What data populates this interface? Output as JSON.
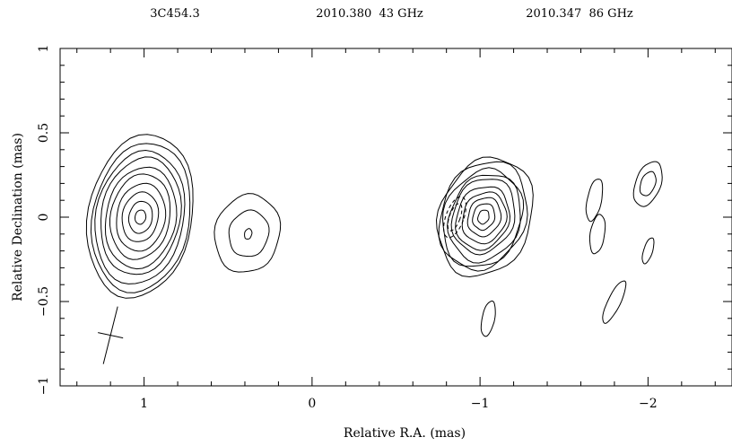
{
  "header": {
    "source": "3C454.3",
    "epoch_left": "2010.380  43 GHz",
    "epoch_right": "2010.347  86 GHz"
  },
  "chart_data": {
    "type": "contour",
    "title": "",
    "xlabel": "Relative R.A. (mas)",
    "ylabel": "Relative Declination (mas)",
    "xlim": [
      1.5,
      -2.5
    ],
    "ylim": [
      -1,
      1
    ],
    "x_reversed": true,
    "x_ticks": [
      {
        "value": 1,
        "label": "1"
      },
      {
        "value": 0,
        "label": "0"
      },
      {
        "value": -1,
        "label": "−1"
      },
      {
        "value": -2,
        "label": "−2"
      }
    ],
    "y_ticks": [
      {
        "value": -1,
        "label": "−1"
      },
      {
        "value": -0.5,
        "label": "−0.5"
      },
      {
        "value": 0,
        "label": "0"
      },
      {
        "value": 0.5,
        "label": "0.5"
      },
      {
        "value": 1,
        "label": "1"
      }
    ],
    "beam": {
      "x": 1.2,
      "y": -0.7
    },
    "components": [
      {
        "name": "43GHz core",
        "x": 1.0,
        "y": 0.0,
        "levels": 10
      },
      {
        "name": "43GHz knot",
        "x": 0.38,
        "y": -0.1,
        "levels": 3
      },
      {
        "name": "86GHz core",
        "x": -1.0,
        "y": 0.0,
        "levels": 10
      },
      {
        "name": "86GHz knot A",
        "x": -1.68,
        "y": 0.1,
        "levels": 1
      },
      {
        "name": "86GHz knot B",
        "x": -1.7,
        "y": -0.1,
        "levels": 1
      },
      {
        "name": "86GHz knot C",
        "x": -2.0,
        "y": 0.2,
        "levels": 2
      },
      {
        "name": "86GHz knot D",
        "x": -2.0,
        "y": -0.2,
        "levels": 1
      },
      {
        "name": "86GHz knot E",
        "x": -1.8,
        "y": -0.5,
        "levels": 1
      },
      {
        "name": "86GHz knot F",
        "x": -1.05,
        "y": -0.6,
        "levels": 1
      }
    ]
  }
}
